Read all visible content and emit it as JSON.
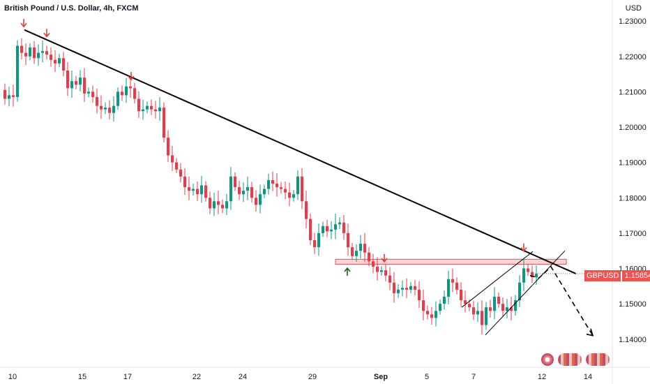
{
  "header": {
    "title": "British Pound / U.S. Dollar, 4h, FXCM",
    "currency": "USD"
  },
  "price_badge": {
    "symbol": "GBPUSD",
    "value": "1.15854"
  },
  "colors": {
    "up": "#089981",
    "down": "#f23645",
    "trendline": "#000000",
    "zone_fill": "#f7c5c8",
    "zone_border": "#e0505a",
    "marker_red": "#e53935",
    "marker_green": "#1b5e20"
  },
  "chart_data": {
    "type": "candlestick",
    "title": "British Pound / U.S. Dollar, 4h, FXCM",
    "ylabel": "USD",
    "ylim": [
      1.136,
      1.232
    ],
    "y_ticks": [
      "1.23000",
      "1.22000",
      "1.21000",
      "1.20000",
      "1.19000",
      "1.18000",
      "1.17000",
      "1.16000",
      "1.15000",
      "1.14000"
    ],
    "x_ticks": [
      "10",
      "15",
      "17",
      "22",
      "24",
      "29",
      "Sep",
      "5",
      "7",
      "12",
      "14"
    ],
    "last_price": 1.15854,
    "close_path": [
      [
        0,
        1.2105
      ],
      [
        6,
        1.208
      ],
      [
        12,
        1.209
      ],
      [
        18,
        1.2085
      ],
      [
        24,
        1.223
      ],
      [
        30,
        1.221
      ],
      [
        36,
        1.22
      ],
      [
        42,
        1.2225
      ],
      [
        48,
        1.2195
      ],
      [
        54,
        1.221
      ],
      [
        60,
        1.2215
      ],
      [
        66,
        1.2205
      ],
      [
        72,
        1.219
      ],
      [
        78,
        1.218
      ],
      [
        84,
        1.2195
      ],
      [
        90,
        1.216
      ],
      [
        96,
        1.211
      ],
      [
        102,
        1.213
      ],
      [
        108,
        1.212
      ],
      [
        114,
        1.214
      ],
      [
        120,
        1.2095
      ],
      [
        126,
        1.21
      ],
      [
        132,
        1.2085
      ],
      [
        138,
        1.206
      ],
      [
        144,
        1.205
      ],
      [
        150,
        1.2055
      ],
      [
        156,
        1.204
      ],
      [
        162,
        1.206
      ],
      [
        168,
        1.21
      ],
      [
        174,
        1.209
      ],
      [
        180,
        1.2115
      ],
      [
        186,
        1.211
      ],
      [
        192,
        1.208
      ],
      [
        198,
        1.2045
      ],
      [
        204,
        1.205
      ],
      [
        210,
        1.206
      ],
      [
        216,
        1.205
      ],
      [
        222,
        1.2045
      ],
      [
        228,
        1.2055
      ],
      [
        234,
        1.197
      ],
      [
        240,
        1.192
      ],
      [
        246,
        1.19
      ],
      [
        252,
        1.188
      ],
      [
        258,
        1.186
      ],
      [
        264,
        1.183
      ],
      [
        270,
        1.182
      ],
      [
        276,
        1.1825
      ],
      [
        282,
        1.181
      ],
      [
        288,
        1.1835
      ],
      [
        294,
        1.18
      ],
      [
        300,
        1.177
      ],
      [
        306,
        1.179
      ],
      [
        312,
        1.178
      ],
      [
        318,
        1.177
      ],
      [
        324,
        1.179
      ],
      [
        330,
        1.186
      ],
      [
        336,
        1.183
      ],
      [
        342,
        1.181
      ],
      [
        348,
        1.182
      ],
      [
        354,
        1.183
      ],
      [
        360,
        1.18
      ],
      [
        366,
        1.178
      ],
      [
        372,
        1.181
      ],
      [
        378,
        1.1825
      ],
      [
        384,
        1.185
      ],
      [
        390,
        1.184
      ],
      [
        396,
        1.183
      ],
      [
        402,
        1.1825
      ],
      [
        408,
        1.1815
      ],
      [
        414,
        1.18
      ],
      [
        420,
        1.181
      ],
      [
        426,
        1.186
      ],
      [
        432,
        1.179
      ],
      [
        438,
        1.174
      ],
      [
        444,
        1.168
      ],
      [
        450,
        1.166
      ],
      [
        456,
        1.17
      ],
      [
        462,
        1.172
      ],
      [
        468,
        1.1705
      ],
      [
        474,
        1.171
      ],
      [
        480,
        1.1725
      ],
      [
        486,
        1.173
      ],
      [
        492,
        1.17
      ],
      [
        498,
        1.166
      ],
      [
        504,
        1.1635
      ],
      [
        510,
        1.165
      ],
      [
        516,
        1.167
      ],
      [
        522,
        1.1645
      ],
      [
        528,
        1.162
      ],
      [
        534,
        1.1605
      ],
      [
        540,
        1.159
      ],
      [
        546,
        1.1595
      ],
      [
        552,
        1.158
      ],
      [
        558,
        1.156
      ],
      [
        564,
        1.153
      ],
      [
        570,
        1.154
      ],
      [
        576,
        1.1545
      ],
      [
        582,
        1.154
      ],
      [
        588,
        1.155
      ],
      [
        594,
        1.154
      ],
      [
        600,
        1.151
      ],
      [
        606,
        1.148
      ],
      [
        612,
        1.147
      ],
      [
        618,
        1.146
      ],
      [
        624,
        1.148
      ],
      [
        630,
        1.15
      ],
      [
        636,
        1.152
      ],
      [
        642,
        1.157
      ],
      [
        648,
        1.156
      ],
      [
        654,
        1.154
      ],
      [
        660,
        1.151
      ],
      [
        666,
        1.15
      ],
      [
        672,
        1.149
      ],
      [
        678,
        1.147
      ],
      [
        684,
        1.148
      ],
      [
        690,
        1.144
      ],
      [
        696,
        1.149
      ],
      [
        702,
        1.148
      ],
      [
        708,
        1.152
      ],
      [
        714,
        1.15
      ],
      [
        720,
        1.148
      ],
      [
        726,
        1.149
      ],
      [
        732,
        1.148
      ],
      [
        738,
        1.151
      ],
      [
        744,
        1.156
      ],
      [
        750,
        1.16
      ],
      [
        756,
        1.159
      ],
      [
        762,
        1.1575
      ],
      [
        768,
        1.1585
      ]
    ],
    "annotations": {
      "trendline": [
        [
          35,
          1.2275
        ],
        [
          826,
          1.1585
        ]
      ],
      "resistance_zone": {
        "x": [
          481,
          812
        ],
        "y": [
          1.1612,
          1.1626
        ]
      },
      "channel_lower": [
        [
          696,
          1.1412
        ],
        [
          810,
          1.165
        ]
      ],
      "channel_upper": [
        [
          662,
          1.149
        ],
        [
          764,
          1.1648
        ]
      ],
      "projection_path": [
        [
          760,
          1.158
        ],
        [
          773,
          1.1573
        ],
        [
          790,
          1.1605
        ],
        [
          850,
          1.141
        ]
      ],
      "down_arrows": [
        [
          34,
          1.229
        ],
        [
          67,
          1.2262
        ],
        [
          188,
          1.214
        ],
        [
          551,
          1.1625
        ],
        [
          751,
          1.1655
        ]
      ],
      "up_arrows": [
        [
          498,
          1.1595
        ]
      ]
    }
  }
}
